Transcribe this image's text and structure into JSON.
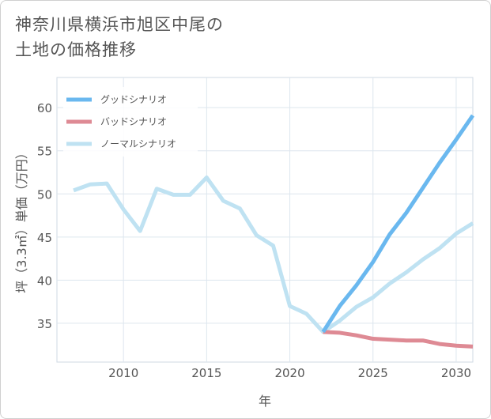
{
  "title_line1": "神奈川県横浜市旭区中尾の",
  "title_line2": "土地の価格推移",
  "chart_data": {
    "type": "line",
    "title": "神奈川県横浜市旭区中尾の土地の価格推移",
    "xlabel": "年",
    "ylabel": "坪（3.3㎡）単価（万円）",
    "xlim": [
      2006,
      2031
    ],
    "ylim": [
      30.5,
      63.5
    ],
    "xticks": [
      2010,
      2015,
      2020,
      2025,
      2030
    ],
    "yticks": [
      35,
      40,
      45,
      50,
      55,
      60
    ],
    "grid": true,
    "legend_position": "top-left",
    "series": [
      {
        "name": "グッドシナリオ",
        "color": "#6ab8ef",
        "x": [
          2022,
          2023,
          2024,
          2025,
          2026,
          2027,
          2028,
          2029,
          2030,
          2031
        ],
        "y": [
          34.0,
          37.0,
          39.4,
          42.1,
          45.3,
          47.8,
          50.7,
          53.6,
          56.3,
          59.1
        ]
      },
      {
        "name": "バッドシナリオ",
        "color": "#de8a94",
        "x": [
          2022,
          2023,
          2024,
          2025,
          2026,
          2027,
          2028,
          2029,
          2030,
          2031
        ],
        "y": [
          34.0,
          33.9,
          33.6,
          33.2,
          33.1,
          33.0,
          33.0,
          32.6,
          32.4,
          32.3
        ]
      },
      {
        "name": "ノーマルシナリオ",
        "color": "#bfe2f2",
        "x": [
          2007,
          2008,
          2009,
          2010,
          2011,
          2012,
          2013,
          2014,
          2015,
          2016,
          2017,
          2018,
          2019,
          2020,
          2021,
          2022,
          2023,
          2024,
          2025,
          2026,
          2027,
          2028,
          2029,
          2030,
          2031
        ],
        "y": [
          50.4,
          51.1,
          51.2,
          48.2,
          45.7,
          50.6,
          49.9,
          49.9,
          51.9,
          49.2,
          48.3,
          45.2,
          44.0,
          37.0,
          36.1,
          34.0,
          35.3,
          36.9,
          38.0,
          39.6,
          40.9,
          42.4,
          43.7,
          45.4,
          46.6
        ]
      }
    ]
  }
}
